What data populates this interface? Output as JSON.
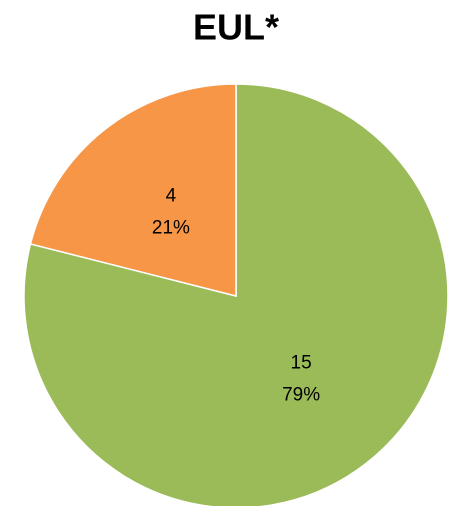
{
  "chart_data": {
    "type": "pie",
    "title": "EUL*",
    "categories": [
      null,
      null
    ],
    "values": [
      15,
      4
    ],
    "percent_labels": [
      "79%",
      "21%"
    ],
    "colors": [
      "#9bbb59",
      "#f79646"
    ],
    "start_angle": 0,
    "direction": "clockwise"
  }
}
